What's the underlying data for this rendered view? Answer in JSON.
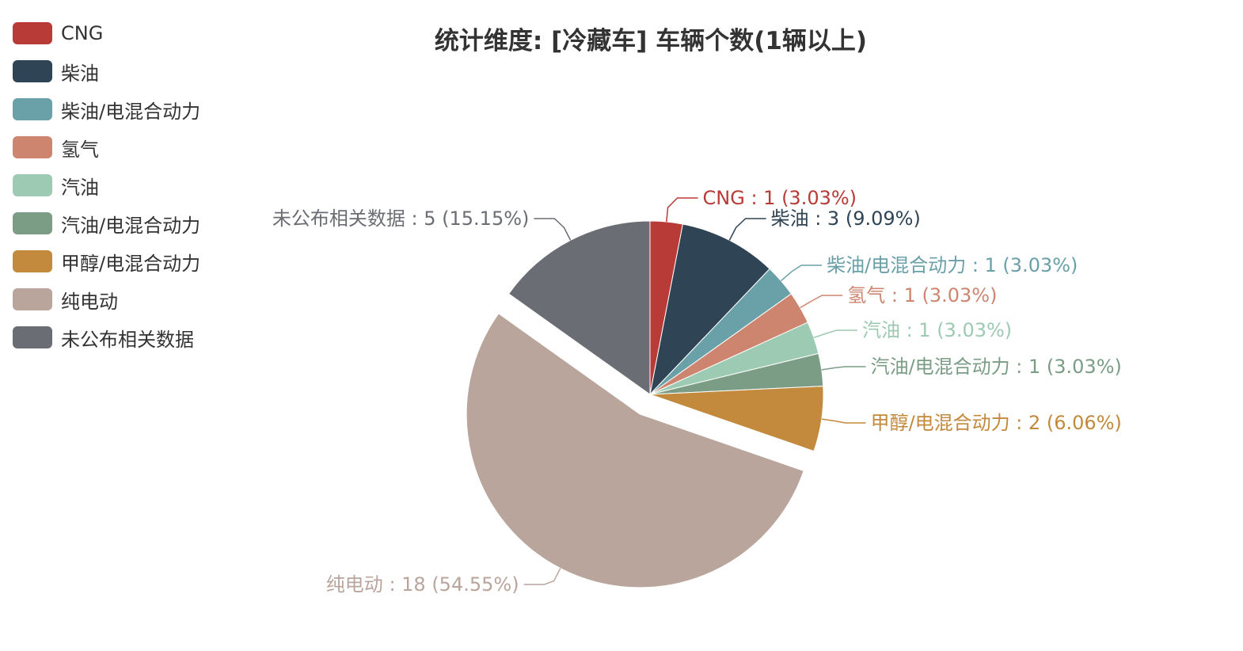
{
  "chart_data": {
    "type": "pie",
    "title": "统计维度: [冷藏车] 车辆个数(1辆以上)",
    "legend_position": "top-left",
    "slices": [
      {
        "name": "CNG",
        "value": 1,
        "percent_label": "3.03%",
        "color": "#b83b37"
      },
      {
        "name": "柴油",
        "value": 3,
        "percent_label": "9.09%",
        "color": "#2f4454"
      },
      {
        "name": "柴油/电混合动力",
        "value": 1,
        "percent_label": "3.03%",
        "color": "#6aa0a8"
      },
      {
        "name": "氢气",
        "value": 1,
        "percent_label": "3.03%",
        "color": "#cd8570"
      },
      {
        "name": "汽油",
        "value": 1,
        "percent_label": "3.03%",
        "color": "#9ccab2"
      },
      {
        "name": "汽油/电混合动力",
        "value": 1,
        "percent_label": "3.03%",
        "color": "#7b9d86"
      },
      {
        "name": "甲醇/电混合动力",
        "value": 2,
        "percent_label": "6.06%",
        "color": "#c3893c"
      },
      {
        "name": "纯电动",
        "value": 18,
        "percent_label": "54.55%",
        "color": "#b9a59c",
        "exploded": true
      },
      {
        "name": "未公布相关数据",
        "value": 5,
        "percent_label": "15.15%",
        "color": "#6b6d74"
      }
    ]
  }
}
